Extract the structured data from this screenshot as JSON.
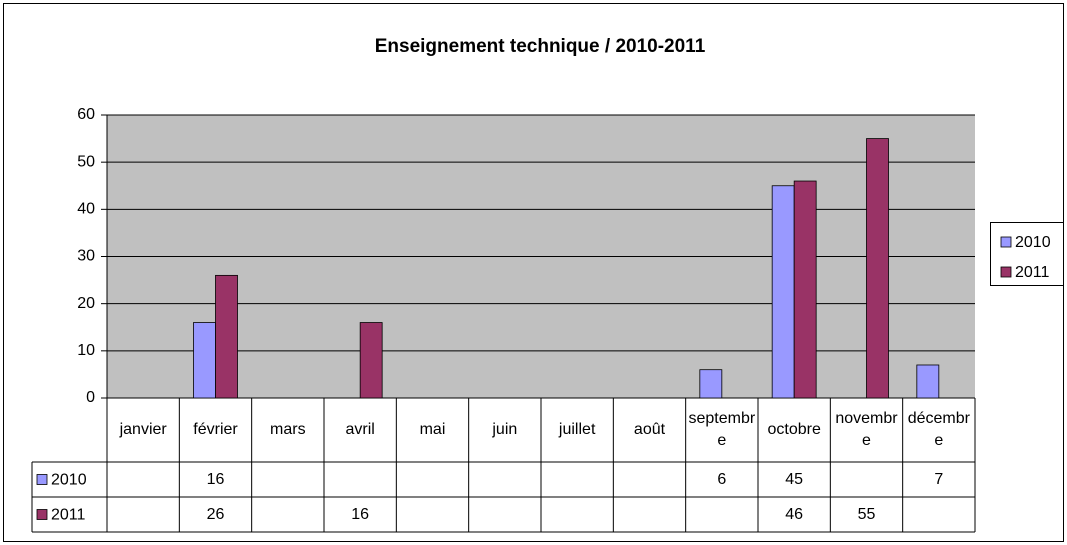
{
  "chart_data": {
    "type": "bar",
    "title": "Enseignement technique / 2010-2011",
    "categories": [
      "janvier",
      "février",
      "mars",
      "avril",
      "mai",
      "juin",
      "juillet",
      "août",
      "septembre",
      "octobre",
      "novembre",
      "décembre"
    ],
    "series": [
      {
        "name": "2010",
        "color": "#9999ff",
        "values": [
          null,
          16,
          null,
          null,
          null,
          null,
          null,
          null,
          6,
          45,
          null,
          7
        ]
      },
      {
        "name": "2011",
        "color": "#993366",
        "values": [
          null,
          26,
          null,
          16,
          null,
          null,
          null,
          null,
          null,
          46,
          55,
          null
        ]
      }
    ],
    "ylim": [
      0,
      60
    ],
    "yticks": [
      0,
      10,
      20,
      30,
      40,
      50,
      60
    ],
    "grid": true,
    "legend": "right",
    "data_table": true
  }
}
